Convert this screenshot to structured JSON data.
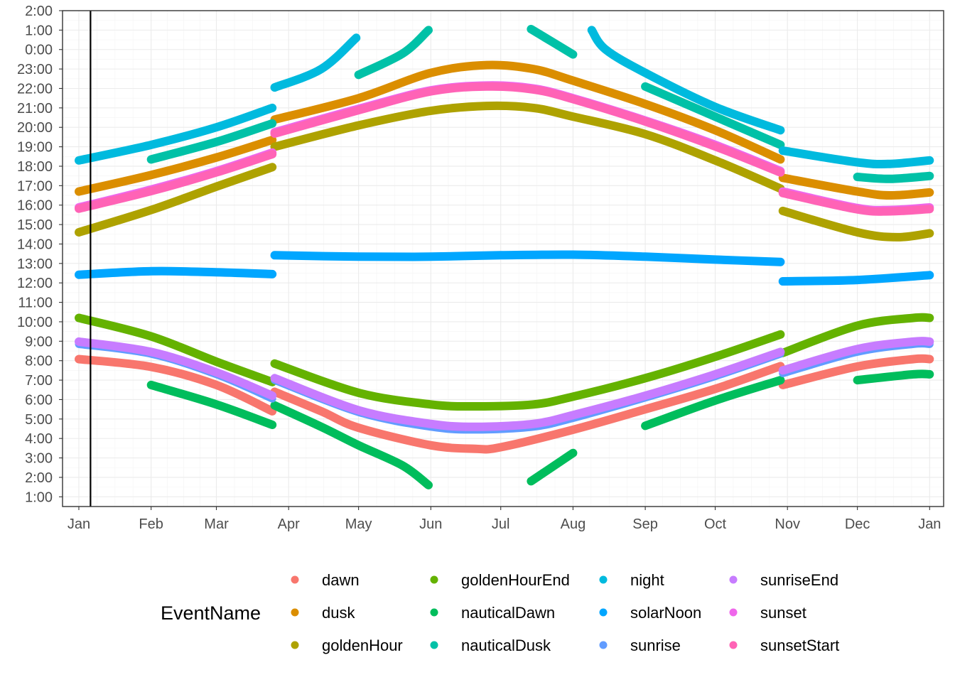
{
  "chart_data": {
    "type": "line",
    "xlabel": "",
    "ylabel": "",
    "x_ticks": [
      "Jan",
      "Feb",
      "Mar",
      "Apr",
      "May",
      "Jun",
      "Jul",
      "Aug",
      "Sep",
      "Oct",
      "Nov",
      "Dec",
      "Jan"
    ],
    "y_ticks": [
      "2:00",
      "1:00",
      "0:00",
      "23:00",
      "22:00",
      "21:00",
      "20:00",
      "19:00",
      "18:00",
      "17:00",
      "16:00",
      "15:00",
      "14:00",
      "13:00",
      "12:00",
      "11:00",
      "10:00",
      "9:00",
      "8:00",
      "7:00",
      "6:00",
      "5:00",
      "4:00",
      "3:00",
      "2:00",
      "1:00"
    ],
    "y_axis_note_hours_top_to_bottom": "axis runs from 2:00 (next day) at top to 1:00 at bottom",
    "grid": true,
    "legend_position": "bottom",
    "legend_title": "EventName",
    "vertical_marker_date": "2023-01-06",
    "colors": {
      "dawn": "#F8766D",
      "dusk": "#DB8E00",
      "goldenHour": "#AEA200",
      "goldenHourEnd": "#64B200",
      "nauticalDawn": "#00BD5C",
      "nauticalDusk": "#00C1A7",
      "night": "#00BADE",
      "solarNoon": "#00A6FF",
      "sunrise": "#619CFF",
      "sunriseEnd": "#C77CFF",
      "sunset": "#EF67EB",
      "sunsetStart": "#FF63B6"
    },
    "series": [
      {
        "name": "dawn",
        "points": [
          [
            "2023-01-01",
            8.08
          ],
          [
            "2023-02-01",
            7.68
          ],
          [
            "2023-03-01",
            6.75
          ],
          [
            "2023-03-25",
            5.4
          ],
          [
            "2023-03-26",
            6.4
          ],
          [
            "2023-04-15",
            5.4
          ],
          [
            "2023-05-01",
            4.55
          ],
          [
            "2023-06-01",
            3.65
          ],
          [
            "2023-06-20",
            3.47
          ],
          [
            "2023-07-01",
            3.55
          ],
          [
            "2023-08-01",
            4.45
          ],
          [
            "2023-09-01",
            5.5
          ],
          [
            "2023-10-01",
            6.55
          ],
          [
            "2023-10-29",
            7.72
          ],
          [
            "2023-10-30",
            6.75
          ],
          [
            "2023-12-01",
            7.7
          ],
          [
            "2023-12-25",
            8.08
          ],
          [
            "2024-01-01",
            8.08
          ]
        ]
      },
      {
        "name": "dusk",
        "points": [
          [
            "2023-01-01",
            16.7
          ],
          [
            "2023-02-01",
            17.55
          ],
          [
            "2023-03-01",
            18.45
          ],
          [
            "2023-03-25",
            19.35
          ],
          [
            "2023-03-26",
            20.4
          ],
          [
            "2023-05-01",
            21.5
          ],
          [
            "2023-06-01",
            22.8
          ],
          [
            "2023-06-25",
            23.2
          ],
          [
            "2023-07-15",
            23.0
          ],
          [
            "2023-08-01",
            22.4
          ],
          [
            "2023-09-01",
            21.2
          ],
          [
            "2023-10-01",
            19.85
          ],
          [
            "2023-10-29",
            18.35
          ],
          [
            "2023-10-30",
            17.4
          ],
          [
            "2023-12-01",
            16.7
          ],
          [
            "2023-12-15",
            16.5
          ],
          [
            "2024-01-01",
            16.65
          ]
        ]
      },
      {
        "name": "goldenHour",
        "points": [
          [
            "2023-01-01",
            14.6
          ],
          [
            "2023-02-01",
            15.75
          ],
          [
            "2023-03-01",
            16.95
          ],
          [
            "2023-03-25",
            17.95
          ],
          [
            "2023-03-26",
            19.0
          ],
          [
            "2023-05-01",
            20.1
          ],
          [
            "2023-06-01",
            20.85
          ],
          [
            "2023-06-25",
            21.1
          ],
          [
            "2023-07-15",
            21.0
          ],
          [
            "2023-08-01",
            20.55
          ],
          [
            "2023-09-01",
            19.65
          ],
          [
            "2023-10-01",
            18.3
          ],
          [
            "2023-10-29",
            16.85
          ],
          [
            "2023-10-30",
            15.7
          ],
          [
            "2023-12-01",
            14.6
          ],
          [
            "2023-12-18",
            14.35
          ],
          [
            "2024-01-01",
            14.55
          ]
        ]
      },
      {
        "name": "goldenHourEnd",
        "points": [
          [
            "2023-01-01",
            10.2
          ],
          [
            "2023-02-01",
            9.25
          ],
          [
            "2023-03-01",
            7.95
          ],
          [
            "2023-03-25",
            6.9
          ],
          [
            "2023-03-26",
            7.85
          ],
          [
            "2023-05-01",
            6.35
          ],
          [
            "2023-06-01",
            5.75
          ],
          [
            "2023-06-20",
            5.65
          ],
          [
            "2023-07-15",
            5.75
          ],
          [
            "2023-08-01",
            6.15
          ],
          [
            "2023-09-01",
            7.1
          ],
          [
            "2023-10-01",
            8.2
          ],
          [
            "2023-10-29",
            9.35
          ],
          [
            "2023-10-30",
            8.4
          ],
          [
            "2023-12-01",
            9.8
          ],
          [
            "2023-12-25",
            10.2
          ],
          [
            "2024-01-01",
            10.2
          ]
        ]
      },
      {
        "name": "nauticalDawn",
        "points": [
          [
            "2023-01-01",
            7.28
          ],
          [
            "2023-02-01",
            6.75
          ],
          [
            "2023-03-01",
            5.75
          ],
          [
            "2023-03-25",
            4.7
          ],
          [
            "2023-03-26",
            5.7
          ],
          [
            "2023-04-15",
            4.6
          ],
          [
            "2023-05-01",
            3.65
          ],
          [
            "2023-05-20",
            2.6
          ],
          [
            "2023-05-31",
            1.6
          ],
          [
            "2023-07-14",
            1.8
          ],
          [
            "2023-08-01",
            3.25
          ],
          [
            "2023-09-01",
            4.65
          ],
          [
            "2023-10-01",
            5.95
          ],
          [
            "2023-10-29",
            7.0
          ],
          [
            "2023-10-30",
            6.05
          ],
          [
            "2023-12-01",
            7.0
          ],
          [
            "2023-12-25",
            7.3
          ],
          [
            "2024-01-01",
            7.3
          ]
        ]
      },
      {
        "name": "nauticalDusk",
        "points": [
          [
            "2023-01-01",
            17.55
          ],
          [
            "2023-02-01",
            18.35
          ],
          [
            "2023-03-01",
            19.25
          ],
          [
            "2023-03-25",
            20.2
          ],
          [
            "2023-03-26",
            21.2
          ],
          [
            "2023-05-01",
            22.7
          ],
          [
            "2023-05-20",
            23.8
          ],
          [
            "2023-05-31",
            25.0
          ],
          [
            "2023-07-14",
            25.05
          ],
          [
            "2023-08-01",
            23.75
          ],
          [
            "2023-09-01",
            22.1
          ],
          [
            "2023-10-01",
            20.55
          ],
          [
            "2023-10-29",
            19.1
          ],
          [
            "2023-10-30",
            18.1
          ],
          [
            "2023-12-01",
            17.45
          ],
          [
            "2023-12-15",
            17.35
          ],
          [
            "2024-01-01",
            17.5
          ]
        ]
      },
      {
        "name": "night",
        "points": [
          [
            "2023-01-01",
            18.3
          ],
          [
            "2023-02-01",
            19.1
          ],
          [
            "2023-03-01",
            20.0
          ],
          [
            "2023-03-25",
            21.0
          ],
          [
            "2023-03-26",
            22.05
          ],
          [
            "2023-04-15",
            23.0
          ],
          [
            "2023-04-30",
            24.6
          ],
          [
            "2023-05-01",
            25.0
          ],
          [
            "2023-08-09",
            25.0
          ],
          [
            "2023-08-15",
            24.0
          ],
          [
            "2023-09-01",
            22.8
          ],
          [
            "2023-10-01",
            21.05
          ],
          [
            "2023-10-29",
            19.85
          ],
          [
            "2023-10-30",
            18.8
          ],
          [
            "2023-12-01",
            18.2
          ],
          [
            "2023-12-15",
            18.12
          ],
          [
            "2024-01-01",
            18.3
          ]
        ]
      },
      {
        "name": "solarNoon",
        "points": [
          [
            "2023-01-01",
            12.42
          ],
          [
            "2023-02-01",
            12.6
          ],
          [
            "2023-03-01",
            12.55
          ],
          [
            "2023-03-25",
            12.45
          ],
          [
            "2023-03-26",
            13.42
          ],
          [
            "2023-05-01",
            13.35
          ],
          [
            "2023-06-01",
            13.35
          ],
          [
            "2023-07-01",
            13.42
          ],
          [
            "2023-08-01",
            13.45
          ],
          [
            "2023-09-01",
            13.35
          ],
          [
            "2023-10-01",
            13.2
          ],
          [
            "2023-10-29",
            13.08
          ],
          [
            "2023-10-30",
            12.08
          ],
          [
            "2023-12-01",
            12.15
          ],
          [
            "2024-01-01",
            12.4
          ]
        ]
      },
      {
        "name": "sunrise",
        "points": [
          [
            "2023-01-01",
            8.85
          ],
          [
            "2023-02-01",
            8.35
          ],
          [
            "2023-03-01",
            7.3
          ],
          [
            "2023-03-25",
            6.05
          ],
          [
            "2023-03-26",
            7.0
          ],
          [
            "2023-05-01",
            5.35
          ],
          [
            "2023-06-01",
            4.6
          ],
          [
            "2023-06-20",
            4.45
          ],
          [
            "2023-07-15",
            4.6
          ],
          [
            "2023-08-01",
            5.05
          ],
          [
            "2023-09-01",
            6.1
          ],
          [
            "2023-10-01",
            7.2
          ],
          [
            "2023-10-29",
            8.35
          ],
          [
            "2023-10-30",
            7.35
          ],
          [
            "2023-12-01",
            8.45
          ],
          [
            "2023-12-25",
            8.85
          ],
          [
            "2024-01-01",
            8.85
          ]
        ]
      },
      {
        "name": "sunriseEnd",
        "points": [
          [
            "2023-01-01",
            8.98
          ],
          [
            "2023-02-01",
            8.45
          ],
          [
            "2023-03-01",
            7.4
          ],
          [
            "2023-03-25",
            6.2
          ],
          [
            "2023-03-26",
            7.1
          ],
          [
            "2023-05-01",
            5.45
          ],
          [
            "2023-06-01",
            4.75
          ],
          [
            "2023-06-20",
            4.6
          ],
          [
            "2023-07-15",
            4.75
          ],
          [
            "2023-08-01",
            5.2
          ],
          [
            "2023-09-01",
            6.2
          ],
          [
            "2023-10-01",
            7.3
          ],
          [
            "2023-10-29",
            8.45
          ],
          [
            "2023-10-30",
            7.5
          ],
          [
            "2023-12-01",
            8.6
          ],
          [
            "2023-12-25",
            8.98
          ],
          [
            "2024-01-01",
            8.98
          ]
        ]
      },
      {
        "name": "sunset",
        "points": [
          [
            "2023-01-01",
            15.88
          ],
          [
            "2023-02-01",
            16.8
          ],
          [
            "2023-03-01",
            17.75
          ],
          [
            "2023-03-25",
            18.7
          ],
          [
            "2023-03-26",
            19.75
          ],
          [
            "2023-05-01",
            20.95
          ],
          [
            "2023-06-01",
            21.9
          ],
          [
            "2023-06-25",
            22.15
          ],
          [
            "2023-07-15",
            22.0
          ],
          [
            "2023-08-01",
            21.5
          ],
          [
            "2023-09-01",
            20.35
          ],
          [
            "2023-10-01",
            19.1
          ],
          [
            "2023-10-29",
            17.75
          ],
          [
            "2023-10-30",
            16.7
          ],
          [
            "2023-12-01",
            15.85
          ],
          [
            "2023-12-15",
            15.75
          ],
          [
            "2024-01-01",
            15.88
          ]
        ]
      },
      {
        "name": "sunsetStart",
        "points": [
          [
            "2023-01-01",
            15.82
          ],
          [
            "2023-02-01",
            16.72
          ],
          [
            "2023-03-01",
            17.68
          ],
          [
            "2023-03-25",
            18.62
          ],
          [
            "2023-03-26",
            19.68
          ],
          [
            "2023-05-01",
            20.88
          ],
          [
            "2023-06-01",
            21.85
          ],
          [
            "2023-06-25",
            22.1
          ],
          [
            "2023-07-15",
            21.95
          ],
          [
            "2023-08-01",
            21.45
          ],
          [
            "2023-09-01",
            20.3
          ],
          [
            "2023-10-01",
            19.02
          ],
          [
            "2023-10-29",
            17.68
          ],
          [
            "2023-10-30",
            16.62
          ],
          [
            "2023-12-01",
            15.78
          ],
          [
            "2023-12-15",
            15.68
          ],
          [
            "2024-01-01",
            15.8
          ]
        ]
      }
    ]
  }
}
